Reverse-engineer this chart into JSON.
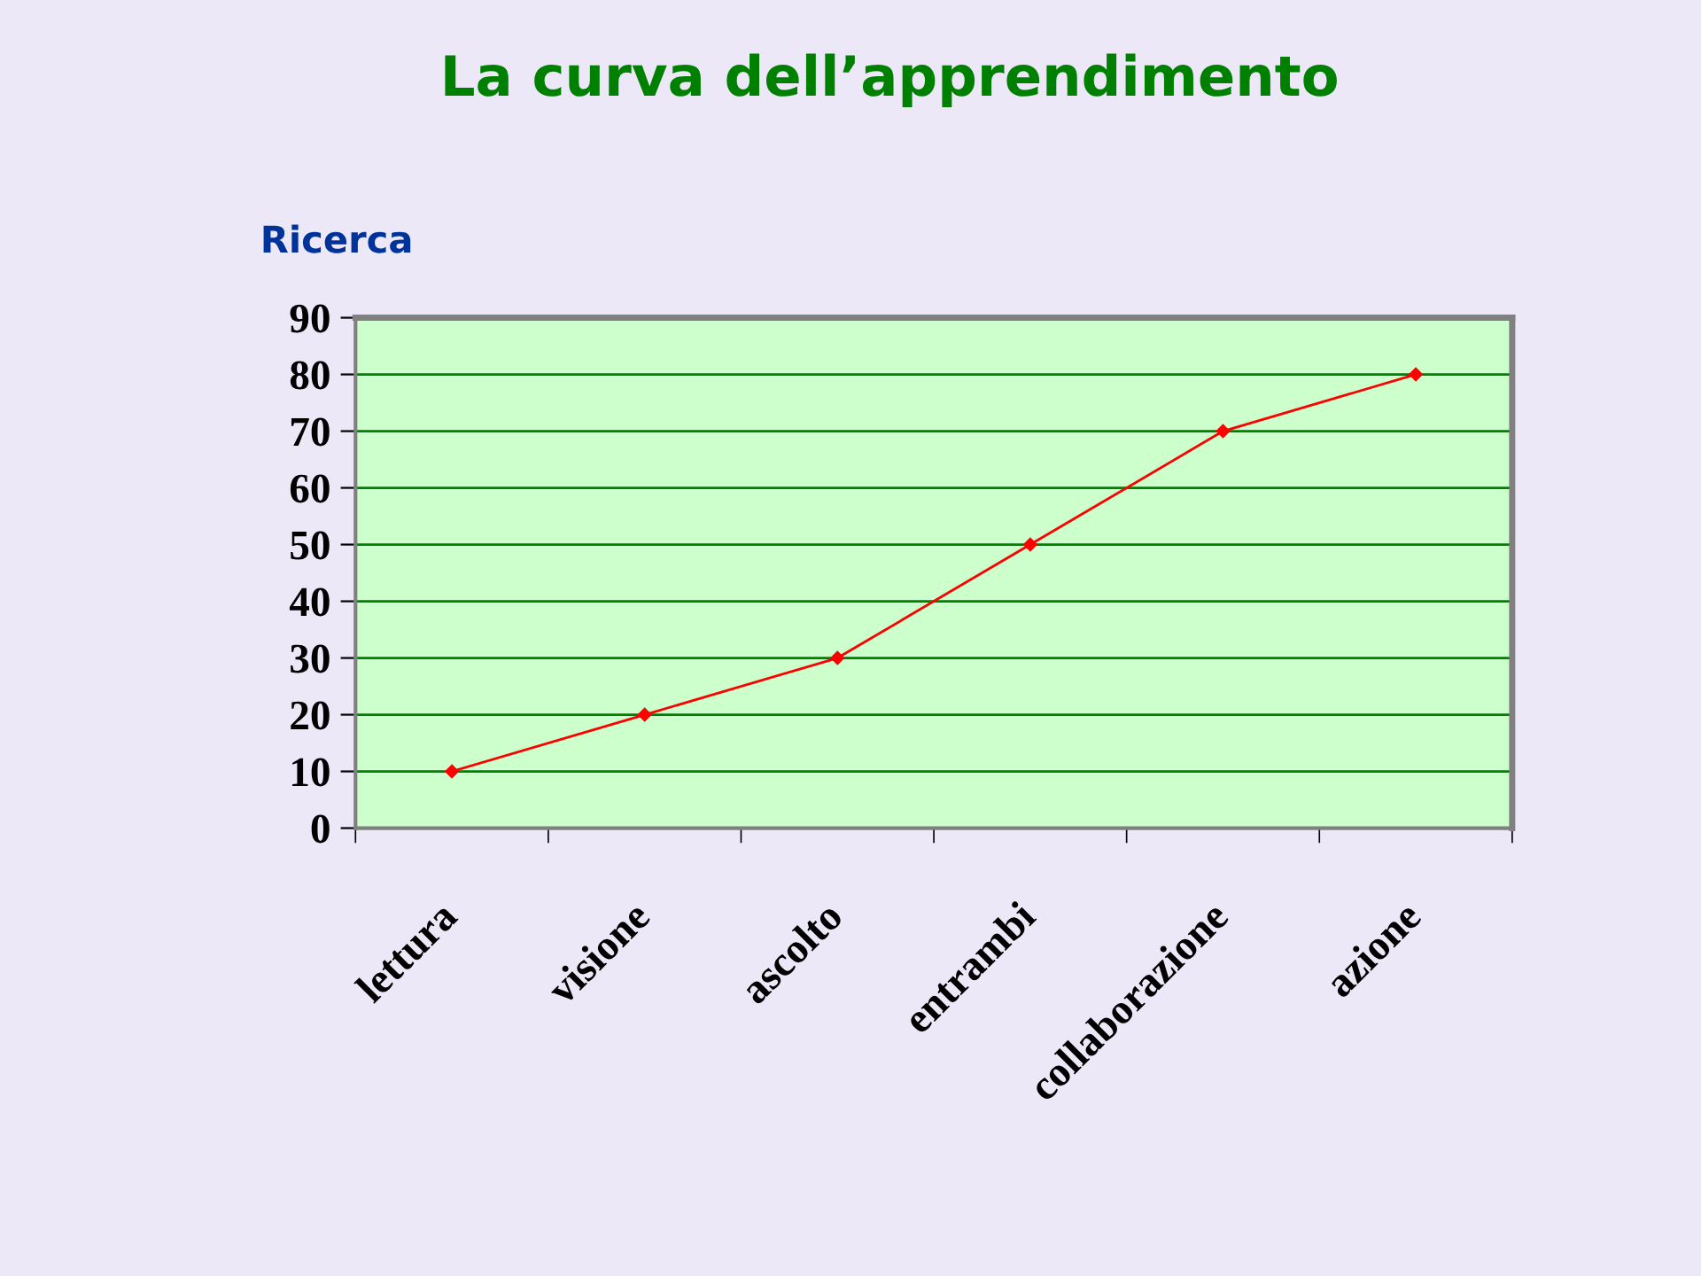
{
  "chart_data": {
    "type": "line",
    "title": "La curva dell’apprendimento",
    "subtitle": "Ricerca",
    "categories": [
      "lettura",
      "visione",
      "ascolto",
      "entrambi",
      "collaborazione",
      "azione"
    ],
    "series": [
      {
        "color": "#ff0000",
        "values": [
          10,
          20,
          30,
          50,
          70,
          80
        ]
      }
    ],
    "ylim": [
      0,
      90
    ],
    "yticks": [
      0,
      10,
      20,
      30,
      40,
      50,
      60,
      70,
      80,
      90
    ],
    "grid": "y",
    "marker": "diamond",
    "line_style": "solid"
  }
}
